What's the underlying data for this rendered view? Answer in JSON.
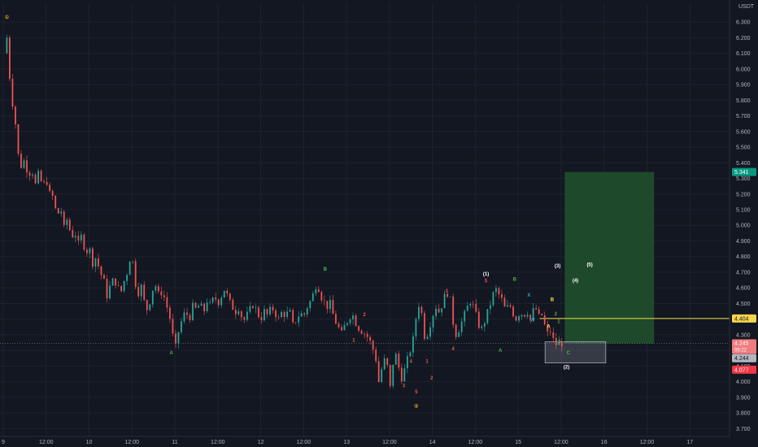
{
  "chart_data": {
    "type": "candlestick",
    "currency": "USDT",
    "ylim": [
      3.65,
      6.42
    ],
    "y_ticks": [
      "6.300",
      "6.200",
      "6.100",
      "6.000",
      "5.900",
      "5.800",
      "5.700",
      "5.600",
      "5.500",
      "5.400",
      "5.300",
      "5.200",
      "5.100",
      "5.000",
      "4.900",
      "4.800",
      "4.700",
      "4.600",
      "4.500",
      "4.400",
      "4.300",
      "4.200",
      "4.100",
      "4.000",
      "3.900",
      "3.800",
      "3.700"
    ],
    "x_ticks": [
      "9",
      "12:00",
      "10",
      "12:00",
      "11",
      "12:00",
      "12",
      "12:00",
      "13",
      "12:00",
      "14",
      "12:00",
      "15",
      "12:00",
      "16",
      "12:00",
      "17"
    ],
    "x_tick_hours": [
      0,
      12,
      24,
      36,
      48,
      60,
      72,
      84,
      96,
      108,
      120,
      132,
      144,
      156,
      168,
      180,
      192
    ],
    "x_range_hours": [
      0,
      204
    ],
    "price_path": [
      [
        0.2,
        6.1
      ],
      [
        1.0,
        6.2
      ],
      [
        1.8,
        5.95
      ],
      [
        2.6,
        5.78
      ],
      [
        3.4,
        5.65
      ],
      [
        4.2,
        5.45
      ],
      [
        5.0,
        5.38
      ],
      [
        6.0,
        5.42
      ],
      [
        7.0,
        5.32
      ],
      [
        8.0,
        5.36
      ],
      [
        9.0,
        5.26
      ],
      [
        10.0,
        5.34
      ],
      [
        11.0,
        5.24
      ],
      [
        12.0,
        5.3
      ],
      [
        13.0,
        5.2
      ],
      [
        14.0,
        5.18
      ],
      [
        15.0,
        5.05
      ],
      [
        16.0,
        5.12
      ],
      [
        17.0,
        4.98
      ],
      [
        18.0,
        5.05
      ],
      [
        19.0,
        4.92
      ],
      [
        20.0,
        4.96
      ],
      [
        21.0,
        4.88
      ],
      [
        22.0,
        4.94
      ],
      [
        23.0,
        4.82
      ],
      [
        24.0,
        4.86
      ],
      [
        25.0,
        4.76
      ],
      [
        26.0,
        4.8
      ],
      [
        27.0,
        4.7
      ],
      [
        28.0,
        4.66
      ],
      [
        29.0,
        4.55
      ],
      [
        30.0,
        4.62
      ],
      [
        31.0,
        4.66
      ],
      [
        32.0,
        4.6
      ],
      [
        33.0,
        4.58
      ],
      [
        34.0,
        4.66
      ],
      [
        35.0,
        4.72
      ],
      [
        35.8,
        4.85
      ],
      [
        36.5,
        4.7
      ],
      [
        37.5,
        4.55
      ],
      [
        38.5,
        4.62
      ],
      [
        39.5,
        4.5
      ],
      [
        40.5,
        4.45
      ],
      [
        41.5,
        4.58
      ],
      [
        42.5,
        4.62
      ],
      [
        43.5,
        4.55
      ],
      [
        44.5,
        4.58
      ],
      [
        45.5,
        4.5
      ],
      [
        46.5,
        4.42
      ],
      [
        47.5,
        4.28
      ],
      [
        48.2,
        4.22
      ],
      [
        49.0,
        4.32
      ],
      [
        50.0,
        4.4
      ],
      [
        51.0,
        4.45
      ],
      [
        52.0,
        4.4
      ],
      [
        53.0,
        4.48
      ],
      [
        54.0,
        4.46
      ],
      [
        55.0,
        4.5
      ],
      [
        56.0,
        4.44
      ],
      [
        57.0,
        4.52
      ],
      [
        58.0,
        4.48
      ],
      [
        59.0,
        4.55
      ],
      [
        60.0,
        4.5
      ],
      [
        61.0,
        4.55
      ],
      [
        62.0,
        4.6
      ],
      [
        63.0,
        4.52
      ],
      [
        64.0,
        4.48
      ],
      [
        65.0,
        4.45
      ],
      [
        66.0,
        4.48
      ],
      [
        67.0,
        4.38
      ],
      [
        68.0,
        4.42
      ],
      [
        69.0,
        4.46
      ],
      [
        70.0,
        4.5
      ],
      [
        71.0,
        4.44
      ],
      [
        72.0,
        4.4
      ],
      [
        73.0,
        4.45
      ],
      [
        74.0,
        4.42
      ],
      [
        75.0,
        4.48
      ],
      [
        76.0,
        4.44
      ],
      [
        77.0,
        4.4
      ],
      [
        78.0,
        4.45
      ],
      [
        79.0,
        4.42
      ],
      [
        80.0,
        4.46
      ],
      [
        81.0,
        4.36
      ],
      [
        82.0,
        4.4
      ],
      [
        83.0,
        4.44
      ],
      [
        84.0,
        4.42
      ],
      [
        85.0,
        4.48
      ],
      [
        86.0,
        4.52
      ],
      [
        87.0,
        4.58
      ],
      [
        87.8,
        4.65
      ],
      [
        88.5,
        4.56
      ],
      [
        89.5,
        4.52
      ],
      [
        90.5,
        4.48
      ],
      [
        91.5,
        4.5
      ],
      [
        92.5,
        4.4
      ],
      [
        93.5,
        4.36
      ],
      [
        94.5,
        4.3
      ],
      [
        95.5,
        4.36
      ],
      [
        96.5,
        4.4
      ],
      [
        97.5,
        4.44
      ],
      [
        98.5,
        4.38
      ],
      [
        99.5,
        4.34
      ],
      [
        100.5,
        4.32
      ],
      [
        101.5,
        4.3
      ],
      [
        102.5,
        4.26
      ],
      [
        103.5,
        4.2
      ],
      [
        104.5,
        4.12
      ],
      [
        105.0,
        4.0
      ],
      [
        106.0,
        4.1
      ],
      [
        107.0,
        4.16
      ],
      [
        107.5,
        4.08
      ],
      [
        108.2,
        3.96
      ],
      [
        109.0,
        4.12
      ],
      [
        110.0,
        4.18
      ],
      [
        110.8,
        4.06
      ],
      [
        111.5,
        4.02
      ],
      [
        112.5,
        4.1
      ],
      [
        113.5,
        4.18
      ],
      [
        114.5,
        4.25
      ],
      [
        115.0,
        4.35
      ],
      [
        115.8,
        4.46
      ],
      [
        116.5,
        4.52
      ],
      [
        117.2,
        4.4
      ],
      [
        118.0,
        4.26
      ],
      [
        119.0,
        4.34
      ],
      [
        120.0,
        4.42
      ],
      [
        121.0,
        4.48
      ],
      [
        122.0,
        4.44
      ],
      [
        123.0,
        4.52
      ],
      [
        124.0,
        4.58
      ],
      [
        125.0,
        4.52
      ],
      [
        125.6,
        4.4
      ],
      [
        126.5,
        4.3
      ],
      [
        127.5,
        4.34
      ],
      [
        128.5,
        4.4
      ],
      [
        129.5,
        4.46
      ],
      [
        130.5,
        4.52
      ],
      [
        131.5,
        4.48
      ],
      [
        132.5,
        4.4
      ],
      [
        133.5,
        4.32
      ],
      [
        134.5,
        4.38
      ],
      [
        135.5,
        4.45
      ],
      [
        136.5,
        4.52
      ],
      [
        137.5,
        4.6
      ],
      [
        138.5,
        4.56
      ],
      [
        139.5,
        4.52
      ],
      [
        140.5,
        4.45
      ],
      [
        141.5,
        4.5
      ],
      [
        142.5,
        4.44
      ],
      [
        143.5,
        4.4
      ],
      [
        144.5,
        4.45
      ],
      [
        145.5,
        4.42
      ],
      [
        146.5,
        4.46
      ],
      [
        147.2,
        4.38
      ],
      [
        148.0,
        4.44
      ],
      [
        148.6,
        4.48
      ],
      [
        149.3,
        4.45
      ],
      [
        150.0,
        4.4
      ],
      [
        150.7,
        4.43
      ],
      [
        151.4,
        4.36
      ],
      [
        152.1,
        4.3
      ],
      [
        152.8,
        4.34
      ],
      [
        153.5,
        4.28
      ],
      [
        154.2,
        4.25
      ],
      [
        155.0,
        4.23
      ],
      [
        155.7,
        4.26
      ],
      [
        156.4,
        4.24
      ]
    ],
    "last_price": 4.244,
    "labels": {
      "target_price": "5.341",
      "entry_price": "4.404",
      "stop_price": "4.077",
      "current_price": "4.245",
      "countdown": "05:22",
      "last_price": "4.244"
    },
    "zones": {
      "profit": {
        "start_hour": 157,
        "end_hour": 182,
        "from": 4.245,
        "to": 5.341,
        "color": "#1f4d2c"
      },
      "loss": {
        "start_hour": 157,
        "end_hour": 182,
        "from": 4.077,
        "to": 4.245,
        "color": "#4a1b24"
      },
      "entry_line": {
        "start_hour": 150,
        "value": 4.404,
        "color": "#f0e442"
      },
      "highlight_box": {
        "start_hour": 151.5,
        "end_hour": 168.5,
        "from": 4.12,
        "to": 4.255
      }
    },
    "colors": {
      "up": "#26a69a",
      "down": "#ef5350",
      "target_badge": "#089981",
      "stop_badge": "#f23645",
      "entry_badge": "#f7d54a",
      "price_badge": "#f07c80"
    },
    "wave_labels": [
      {
        "text": "①",
        "hour": 1.0,
        "price": 6.32,
        "color": "#d99a29"
      },
      {
        "text": "A",
        "hour": 47.0,
        "price": 4.175,
        "color": "#4caf50"
      },
      {
        "text": "B",
        "hour": 90.0,
        "price": 4.71,
        "color": "#4caf50"
      },
      {
        "text": "1",
        "hour": 98.0,
        "price": 4.255,
        "color": "#ef5350"
      },
      {
        "text": "2",
        "hour": 101.0,
        "price": 4.42,
        "color": "#ef5350"
      },
      {
        "text": "3",
        "hour": 112.0,
        "price": 3.965,
        "color": "#ef5350"
      },
      {
        "text": "4",
        "hour": 114.0,
        "price": 4.12,
        "color": "#ef5350"
      },
      {
        "text": "5",
        "hour": 115.5,
        "price": 3.925,
        "color": "#ef5350"
      },
      {
        "text": "②",
        "hour": 115.5,
        "price": 3.835,
        "color": "#d99a29"
      },
      {
        "text": "1",
        "hour": 118.5,
        "price": 4.12,
        "color": "#ef5350"
      },
      {
        "text": "2",
        "hour": 119.8,
        "price": 4.015,
        "color": "#ef5350"
      },
      {
        "text": "3",
        "hour": 124.0,
        "price": 4.57,
        "color": "#ef5350"
      },
      {
        "text": "4",
        "hour": 125.8,
        "price": 4.2,
        "color": "#ef5350"
      },
      {
        "text": "(1)",
        "hour": 135.0,
        "price": 4.68,
        "color": "#ffffff"
      },
      {
        "text": "5",
        "hour": 135.0,
        "price": 4.635,
        "color": "#ef5350"
      },
      {
        "text": "A",
        "hour": 139.0,
        "price": 4.19,
        "color": "#4caf50"
      },
      {
        "text": "B",
        "hour": 143.0,
        "price": 4.645,
        "color": "#4caf50"
      },
      {
        "text": "X",
        "hour": 147.0,
        "price": 4.545,
        "color": "#26a6c8"
      },
      {
        "text": "W",
        "hour": 148.0,
        "price": 4.385,
        "color": "#26a6c8"
      },
      {
        "text": "(3)",
        "hour": 155.0,
        "price": 4.73,
        "color": "#ffffff"
      },
      {
        "text": "(4)",
        "hour": 160.0,
        "price": 4.638,
        "color": "#ffffff"
      },
      {
        "text": "(5)",
        "hour": 164.0,
        "price": 4.74,
        "color": "#ffffff"
      },
      {
        "text": "B",
        "hour": 153.5,
        "price": 4.515,
        "color": "#f0e442"
      },
      {
        "text": "2",
        "hour": 154.5,
        "price": 4.425,
        "color": "#4caf50"
      },
      {
        "text": "A",
        "hour": 152.5,
        "price": 4.345,
        "color": "#f0e442"
      },
      {
        "text": "1",
        "hour": 155.3,
        "price": 4.375,
        "color": "#4caf50"
      },
      {
        "text": "3",
        "hour": 155.5,
        "price": 4.245,
        "color": "#4caf50"
      },
      {
        "text": "C",
        "hour": 158.0,
        "price": 4.175,
        "color": "#4caf50"
      },
      {
        "text": "(2)",
        "hour": 157.5,
        "price": 4.085,
        "color": "#ffffff"
      }
    ]
  }
}
